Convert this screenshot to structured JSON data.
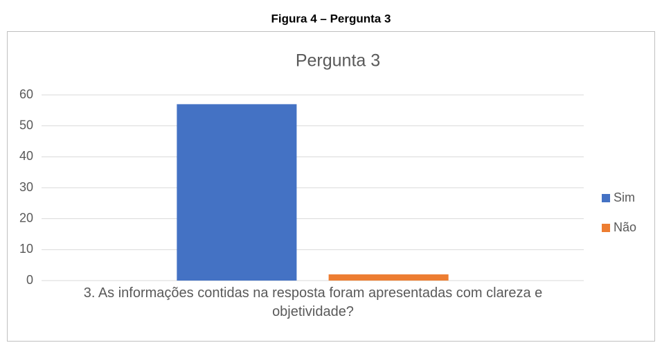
{
  "caption": "Figura 4 – Pergunta 3",
  "chart_data": {
    "type": "bar",
    "title": "Pergunta 3",
    "categories": [
      "3. As informações contidas na resposta foram apresentadas com clareza e objetividade?"
    ],
    "series": [
      {
        "name": "Sim",
        "color": "#4472c4",
        "values": [
          57
        ]
      },
      {
        "name": "Não",
        "color": "#ed7d31",
        "values": [
          2
        ]
      }
    ],
    "ylim": [
      0,
      60
    ],
    "yticks": [
      0,
      10,
      20,
      30,
      40,
      50,
      60
    ],
    "grid": true,
    "legend": "right"
  }
}
